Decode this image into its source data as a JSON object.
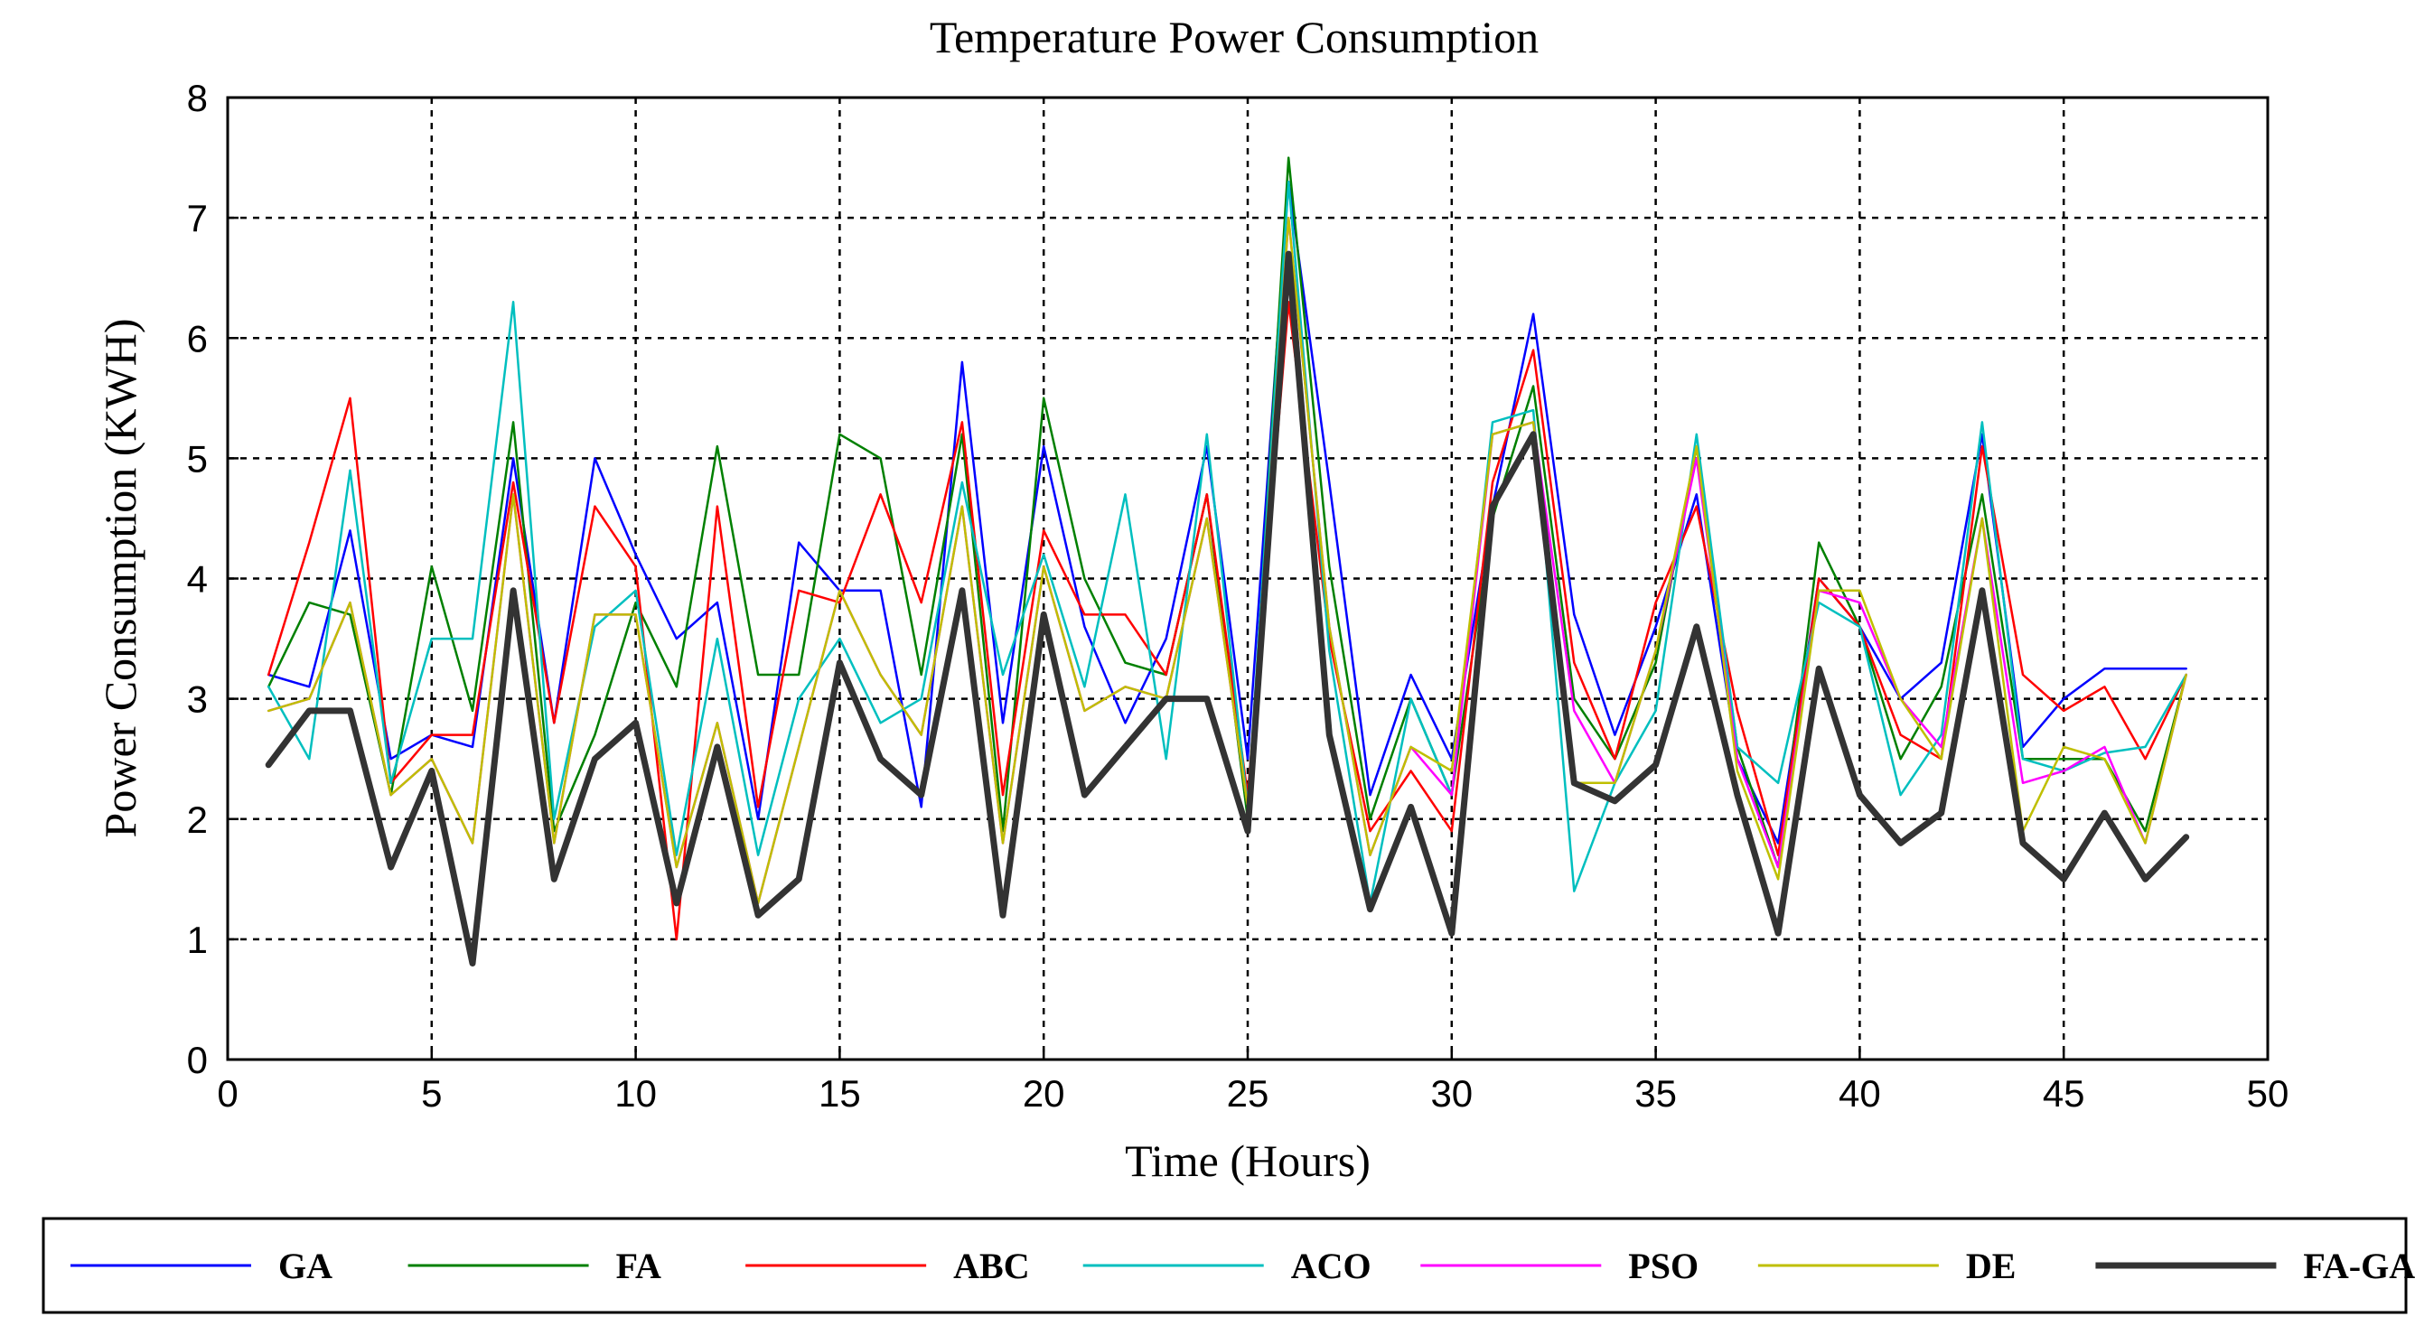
{
  "chart_data": {
    "type": "line",
    "title": "Temperature Power Consumption",
    "xlabel": "Time (Hours)",
    "ylabel": "Power Consumption (KWH)",
    "xlim": [
      0,
      50
    ],
    "ylim": [
      0,
      8
    ],
    "xticks": [
      0,
      5,
      10,
      15,
      20,
      25,
      30,
      35,
      40,
      45,
      50
    ],
    "yticks": [
      0,
      1,
      2,
      3,
      4,
      5,
      6,
      7,
      8
    ],
    "grid": true,
    "legend_position": "bottom",
    "x": [
      1,
      2,
      3,
      4,
      5,
      6,
      7,
      8,
      9,
      10,
      11,
      12,
      13,
      14,
      15,
      16,
      17,
      18,
      19,
      20,
      21,
      22,
      23,
      24,
      25,
      26,
      27,
      28,
      29,
      30,
      31,
      32,
      33,
      34,
      35,
      36,
      37,
      38,
      39,
      40,
      41,
      42,
      43,
      44,
      45,
      46,
      47,
      48
    ],
    "series": [
      {
        "name": "GA",
        "color": "#0000ff",
        "width": 2.5,
        "values": [
          3.2,
          3.1,
          4.4,
          2.5,
          2.7,
          2.6,
          5.0,
          2.8,
          5.0,
          4.2,
          3.5,
          3.8,
          2.0,
          4.3,
          3.9,
          3.9,
          2.1,
          5.8,
          2.8,
          5.1,
          3.6,
          2.8,
          3.5,
          5.1,
          2.5,
          7.3,
          4.8,
          2.2,
          3.2,
          2.5,
          4.6,
          6.2,
          3.7,
          2.7,
          3.6,
          4.7,
          2.5,
          1.8,
          4.0,
          3.6,
          3.0,
          3.3,
          5.2,
          2.6,
          3.0,
          3.25,
          3.25,
          3.25
        ]
      },
      {
        "name": "FA",
        "color": "#008000",
        "width": 2.5,
        "values": [
          3.1,
          3.8,
          3.7,
          2.2,
          4.1,
          2.9,
          5.3,
          1.9,
          2.7,
          3.8,
          3.1,
          5.1,
          3.2,
          3.2,
          5.2,
          5.0,
          3.2,
          5.2,
          1.9,
          5.5,
          4.0,
          3.3,
          3.2,
          4.7,
          2.0,
          7.5,
          4.1,
          2.0,
          3.0,
          2.2,
          4.5,
          5.6,
          3.0,
          2.5,
          3.3,
          5.1,
          2.6,
          1.6,
          4.3,
          3.6,
          2.5,
          3.1,
          4.7,
          2.5,
          2.5,
          2.5,
          1.9,
          3.2
        ]
      },
      {
        "name": "ABC",
        "color": "#ff0000",
        "width": 2.5,
        "values": [
          3.2,
          4.3,
          5.5,
          2.3,
          2.7,
          2.7,
          4.8,
          2.8,
          4.6,
          4.1,
          1.0,
          4.6,
          2.1,
          3.9,
          3.8,
          4.7,
          3.8,
          5.3,
          2.2,
          4.4,
          3.7,
          3.7,
          3.2,
          4.7,
          2.2,
          6.3,
          3.5,
          1.9,
          2.4,
          1.9,
          4.8,
          5.9,
          3.3,
          2.5,
          3.8,
          4.6,
          2.9,
          1.7,
          4.0,
          3.6,
          2.7,
          2.5,
          5.1,
          3.2,
          2.9,
          3.1,
          2.5,
          3.2
        ]
      },
      {
        "name": "ACO",
        "color": "#00bfbf",
        "width": 2.5,
        "values": [
          3.1,
          2.5,
          4.9,
          2.3,
          3.5,
          3.5,
          6.3,
          2.0,
          3.6,
          3.9,
          1.7,
          3.5,
          1.7,
          3.0,
          3.5,
          2.8,
          3.0,
          4.8,
          3.2,
          4.2,
          3.1,
          4.7,
          2.5,
          5.2,
          2.1,
          7.3,
          3.4,
          1.3,
          3.0,
          2.2,
          5.3,
          5.4,
          1.4,
          2.3,
          2.9,
          5.2,
          2.6,
          2.3,
          3.8,
          3.6,
          2.2,
          2.7,
          5.3,
          2.5,
          2.4,
          2.55,
          2.6,
          3.2
        ]
      },
      {
        "name": "PSO",
        "color": "#ff00ff",
        "width": 2.5,
        "values": [
          2.9,
          3.0,
          3.8,
          2.2,
          2.5,
          1.8,
          4.7,
          1.8,
          3.7,
          3.7,
          1.6,
          2.8,
          1.3,
          2.6,
          3.9,
          3.2,
          2.7,
          4.6,
          1.8,
          4.1,
          2.9,
          3.1,
          3.0,
          4.5,
          2.1,
          7.0,
          3.6,
          1.7,
          2.6,
          2.2,
          5.2,
          5.3,
          2.9,
          2.3,
          3.4,
          5.0,
          2.5,
          1.6,
          3.9,
          3.8,
          3.0,
          2.6,
          4.5,
          2.3,
          2.4,
          2.6,
          1.8,
          3.2
        ]
      },
      {
        "name": "DE",
        "color": "#bfbf00",
        "width": 2.5,
        "values": [
          2.9,
          3.0,
          3.8,
          2.2,
          2.5,
          1.8,
          4.7,
          1.8,
          3.7,
          3.7,
          1.6,
          2.8,
          1.3,
          2.6,
          3.9,
          3.2,
          2.7,
          4.6,
          1.8,
          4.1,
          2.9,
          3.1,
          3.0,
          4.5,
          2.1,
          7.0,
          3.6,
          1.7,
          2.6,
          2.4,
          5.2,
          5.3,
          2.3,
          2.3,
          3.4,
          5.1,
          2.4,
          1.5,
          3.9,
          3.9,
          3.0,
          2.5,
          4.5,
          1.9,
          2.6,
          2.5,
          1.8,
          3.2
        ]
      },
      {
        "name": "FA-GA",
        "color": "#333333",
        "width": 7,
        "values": [
          2.45,
          2.9,
          2.9,
          1.6,
          2.4,
          0.8,
          3.9,
          1.5,
          2.5,
          2.8,
          1.3,
          2.6,
          1.2,
          1.5,
          3.3,
          2.5,
          2.2,
          3.9,
          1.2,
          3.7,
          2.2,
          2.6,
          3.0,
          3.0,
          1.9,
          6.7,
          2.7,
          1.25,
          2.1,
          1.05,
          4.6,
          5.2,
          2.3,
          2.15,
          2.45,
          3.6,
          2.2,
          1.05,
          3.25,
          2.2,
          1.8,
          2.05,
          3.9,
          1.8,
          1.5,
          2.05,
          1.5,
          1.85
        ]
      }
    ]
  }
}
